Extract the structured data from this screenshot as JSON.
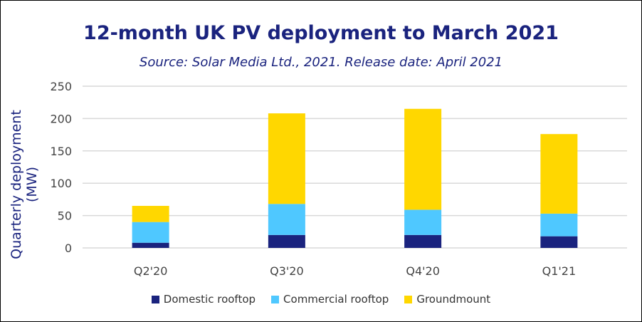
{
  "chart_data": {
    "type": "bar",
    "stacked": true,
    "title": "12-month UK PV deployment to March 2021",
    "subtitle": "Source: Solar Media Ltd., 2021. Release date: April 2021",
    "xlabel": "",
    "ylabel": "Quarterly deployment (MW)",
    "ylim": [
      0,
      250
    ],
    "yticks": [
      0,
      50,
      100,
      150,
      200,
      250
    ],
    "grid": true,
    "legend_placement": "bottom",
    "categories": [
      "Q2'20",
      "Q3'20",
      "Q4'20",
      "Q1'21"
    ],
    "series": [
      {
        "name": "Domestic rooftop",
        "color": "#1a237e",
        "values": [
          8,
          20,
          20,
          18
        ]
      },
      {
        "name": "Commercial rooftop",
        "color": "#4fc8ff",
        "values": [
          32,
          48,
          39,
          35
        ]
      },
      {
        "name": "Groundmount",
        "color": "#ffd700",
        "values": [
          25,
          140,
          156,
          123
        ]
      }
    ]
  }
}
